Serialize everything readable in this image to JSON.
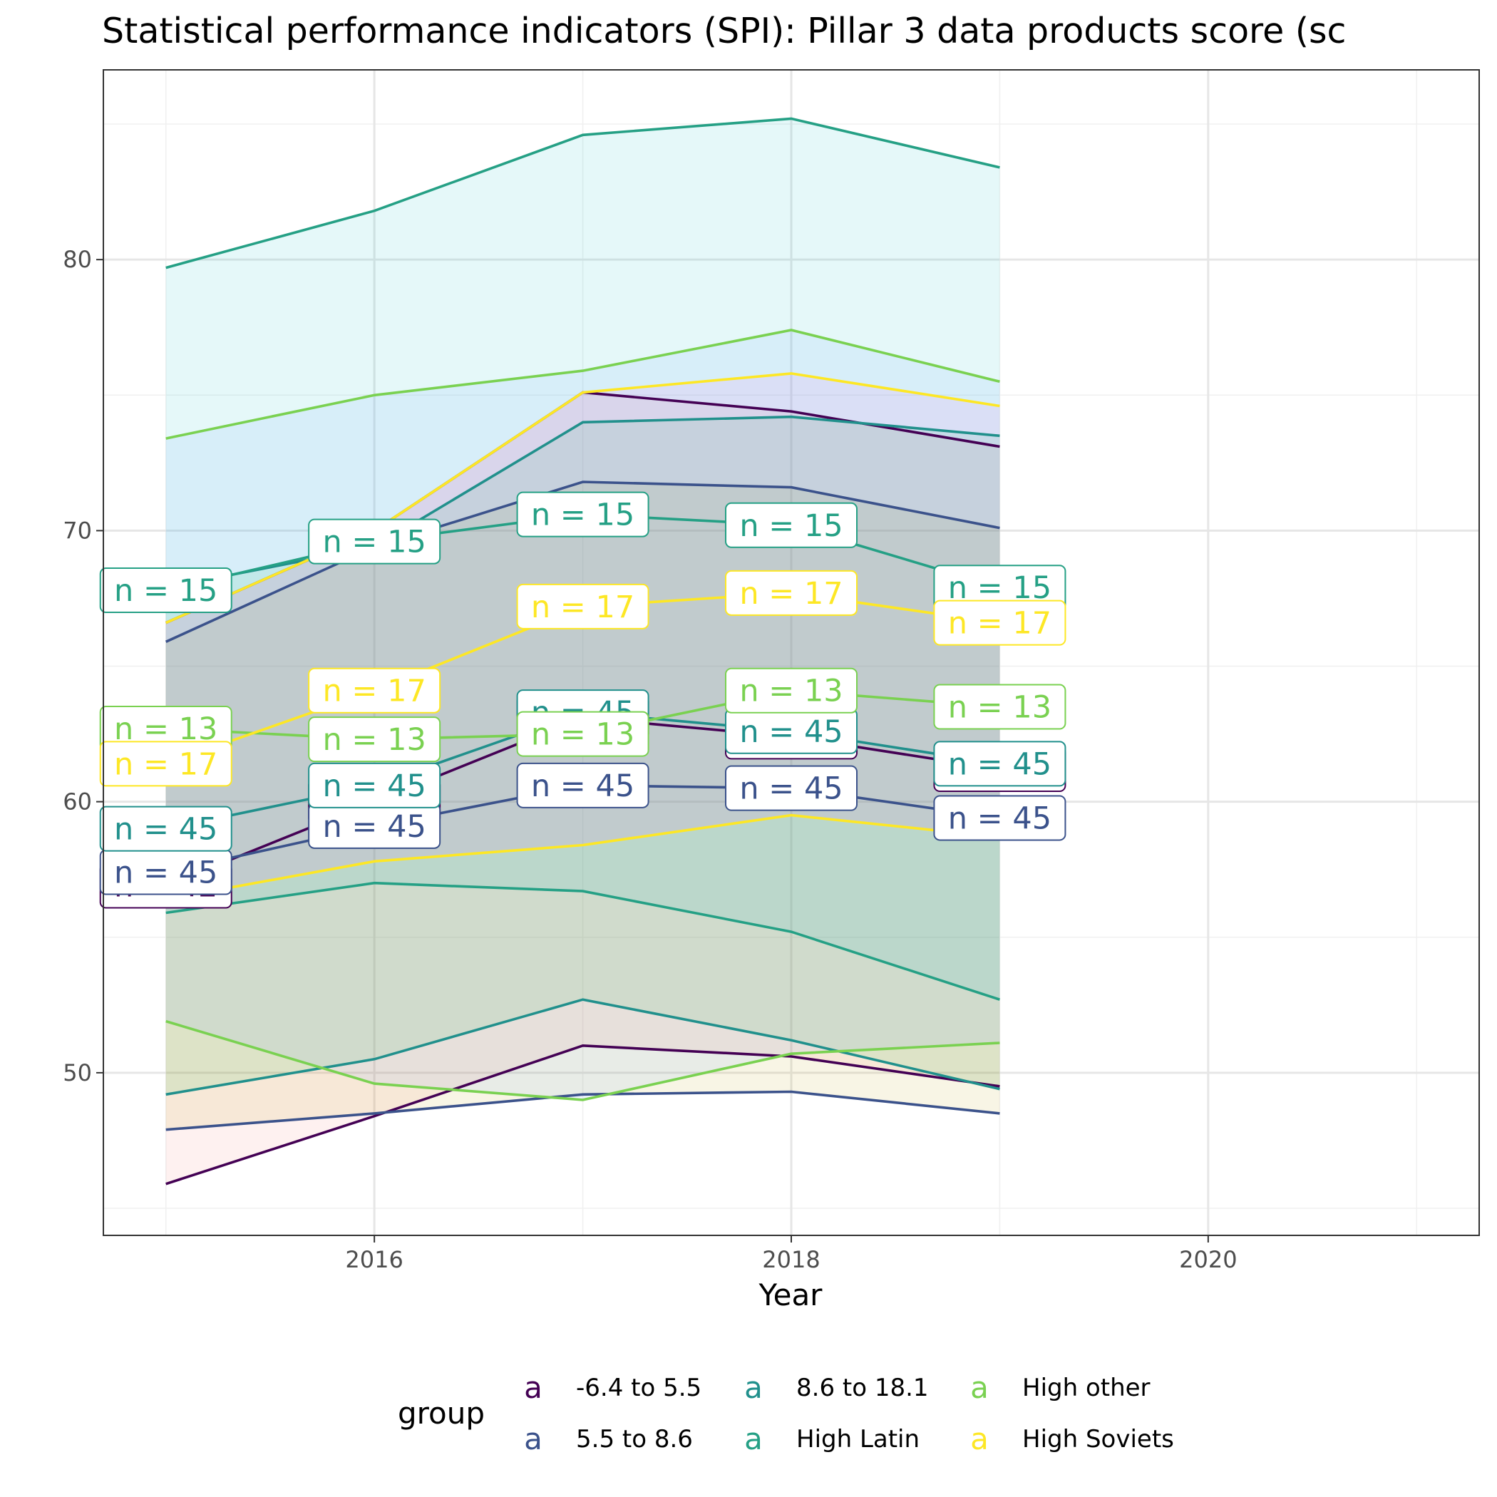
{
  "chart_data": {
    "type": "line",
    "title": "Statistical performance indicators (SPI): Pillar 3 data products score  (sc",
    "xlabel": "Year",
    "ylabel": "",
    "xlim": [
      2014.7,
      2021.3
    ],
    "ylim": [
      44.0,
      87.0
    ],
    "x_ticks": [
      "2016",
      "2018",
      "2020"
    ],
    "y_ticks": [
      "50",
      "60",
      "70",
      "80"
    ],
    "grid": true,
    "legend_title": "group",
    "legend_position": "bottom",
    "legend_key_glyph": "a",
    "x": [
      2015,
      2016,
      2017,
      2018,
      2019
    ],
    "series": [
      {
        "name": "-6.4 to 5.5",
        "color": "#440154",
        "fill": "#F8766D",
        "mean": [
          56.9,
          60.0,
          63.1,
          62.4,
          61.2
        ],
        "upper": [
          66.6,
          70.0,
          75.1,
          74.4,
          73.1
        ],
        "lower": [
          45.9,
          48.4,
          51.0,
          50.6,
          49.5
        ],
        "n": [
          42,
          42,
          42,
          42,
          42
        ]
      },
      {
        "name": "5.5 to 8.6",
        "color": "#3B528B",
        "fill": "#B79F00",
        "mean": [
          57.4,
          59.1,
          60.6,
          60.5,
          59.4
        ],
        "upper": [
          65.9,
          69.4,
          71.8,
          71.6,
          70.1
        ],
        "lower": [
          47.9,
          48.5,
          49.2,
          49.3,
          48.5
        ],
        "n": [
          45,
          45,
          45,
          45,
          45
        ]
      },
      {
        "name": "8.6 to 18.1",
        "color": "#21908C",
        "fill": "#00BA38",
        "mean": [
          59.0,
          60.6,
          63.3,
          62.6,
          61.4
        ],
        "upper": [
          67.9,
          69.4,
          74.0,
          74.2,
          73.5
        ],
        "lower": [
          49.2,
          50.5,
          52.7,
          51.2,
          49.4
        ],
        "n": [
          45,
          45,
          45,
          45,
          45
        ]
      },
      {
        "name": "High Latin",
        "color": "#25A085",
        "fill": "#00BFC4",
        "mean": [
          67.8,
          69.6,
          70.6,
          70.2,
          67.9
        ],
        "upper": [
          79.7,
          81.8,
          84.6,
          85.2,
          83.4
        ],
        "lower": [
          55.9,
          57.0,
          56.7,
          55.2,
          52.7
        ],
        "n": [
          15,
          15,
          15,
          15,
          15
        ]
      },
      {
        "name": "High other",
        "color": "#7AD151",
        "fill": "#619CFF",
        "mean": [
          62.7,
          62.3,
          62.5,
          64.1,
          63.5
        ],
        "upper": [
          73.4,
          75.0,
          75.9,
          77.4,
          75.5
        ],
        "lower": [
          51.9,
          49.6,
          49.0,
          50.7,
          51.1
        ],
        "n": [
          13,
          13,
          13,
          13,
          13
        ]
      },
      {
        "name": "High Soviets",
        "color": "#FDE725",
        "fill": "#F564E3",
        "mean": [
          61.4,
          64.1,
          67.2,
          67.7,
          66.6
        ],
        "upper": [
          66.6,
          70.0,
          75.1,
          75.8,
          74.6
        ],
        "lower": [
          56.4,
          57.8,
          58.4,
          59.5,
          58.7
        ],
        "n": [
          17,
          17,
          17,
          17,
          17
        ]
      }
    ]
  }
}
